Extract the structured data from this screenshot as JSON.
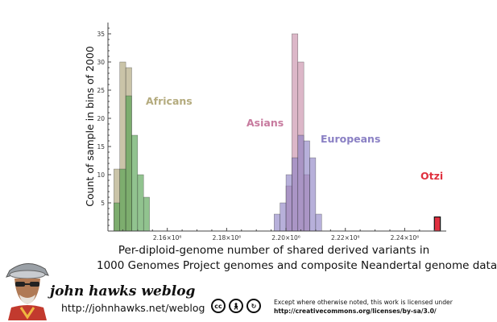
{
  "chart_data": {
    "type": "bar",
    "xlabel_line1": "Per-diploid-genome number of shared derived variants in",
    "xlabel_line2": "1000 Genomes Project genomes and composite Neandertal genome data",
    "ylabel": "Count of sample in bins of 2000",
    "xlim": [
      2140000,
      2254000
    ],
    "ylim": [
      0,
      37
    ],
    "bin_width": 2000,
    "x_ticks": [
      {
        "value": 2160000,
        "label": "2.16×10⁶"
      },
      {
        "value": 2180000,
        "label": "2.18×10⁶"
      },
      {
        "value": 2200000,
        "label": "2.20×10⁶"
      },
      {
        "value": 2220000,
        "label": "2.22×10⁶"
      },
      {
        "value": 2240000,
        "label": "2.24×10⁶"
      }
    ],
    "y_ticks": [
      5,
      10,
      15,
      20,
      25,
      30,
      35
    ],
    "series": [
      {
        "name": "Africans",
        "color": "#a9a073",
        "bins": [
          {
            "x": 2142000,
            "count": 11
          },
          {
            "x": 2144000,
            "count": 30
          },
          {
            "x": 2146000,
            "count": 29
          }
        ]
      },
      {
        "name": "Africans",
        "color": "#4e9e4a",
        "bins": [
          {
            "x": 2142000,
            "count": 5
          },
          {
            "x": 2144000,
            "count": 11
          },
          {
            "x": 2146000,
            "count": 24
          },
          {
            "x": 2148000,
            "count": 17
          },
          {
            "x": 2150000,
            "count": 10
          },
          {
            "x": 2152000,
            "count": 6
          }
        ]
      },
      {
        "name": "Asians",
        "color": "#c78aa6",
        "bins": [
          {
            "x": 2200000,
            "count": 8
          },
          {
            "x": 2202000,
            "count": 35
          },
          {
            "x": 2204000,
            "count": 30
          },
          {
            "x": 2206000,
            "count": 10
          }
        ]
      },
      {
        "name": "Europeans",
        "color": "#8a80c4",
        "bins": [
          {
            "x": 2196000,
            "count": 3
          },
          {
            "x": 2198000,
            "count": 5
          },
          {
            "x": 2200000,
            "count": 10
          },
          {
            "x": 2202000,
            "count": 13
          },
          {
            "x": 2204000,
            "count": 17
          },
          {
            "x": 2206000,
            "count": 16
          },
          {
            "x": 2208000,
            "count": 13
          },
          {
            "x": 2210000,
            "count": 3
          }
        ]
      },
      {
        "name": "Otzi",
        "color": "#e03040",
        "bins": [
          {
            "x": 2250000,
            "count": 2.5
          }
        ]
      }
    ],
    "labels": [
      {
        "text": "Africans",
        "color": "#b4ab7e"
      },
      {
        "text": "Asians",
        "color": "#c77a9e"
      },
      {
        "text": "Europeans",
        "color": "#8a80c4"
      },
      {
        "text": "Otzi",
        "color": "#e0303e"
      }
    ]
  },
  "footer": {
    "blog_title": "john hawks weblog",
    "blog_url": "http://johnhawks.net/weblog",
    "license_line1": "Except where otherwise noted, this work is licensed under",
    "license_url": "http://creativecommons.org/licenses/by-sa/3.0/",
    "cc_icons": [
      "cc-icon",
      "by-icon",
      "sa-icon"
    ]
  }
}
